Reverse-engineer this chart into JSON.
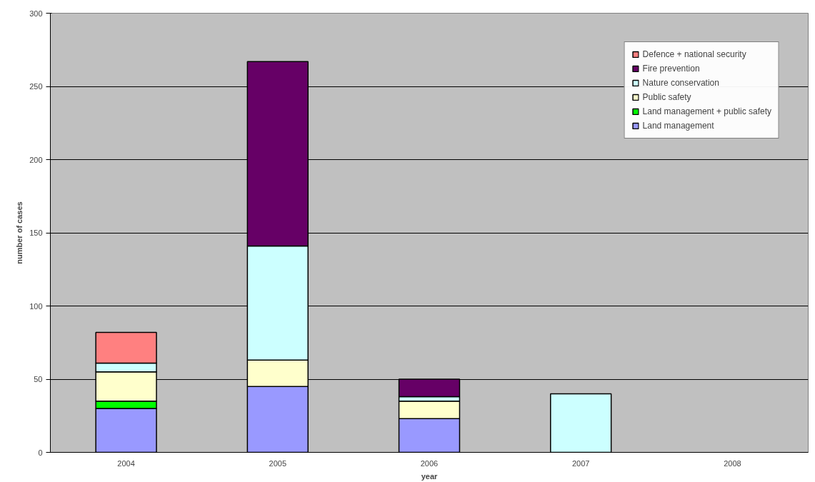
{
  "chart_data": {
    "type": "bar",
    "stacked": true,
    "xlabel": "year",
    "ylabel": "number of cases",
    "categories": [
      "2004",
      "2005",
      "2006",
      "2007",
      "2008"
    ],
    "series": [
      {
        "name": "Land management",
        "color": "#9999ff",
        "values": [
          30,
          45,
          23,
          null,
          null
        ]
      },
      {
        "name": "Land management + public safety",
        "color": "#00ff00",
        "values": [
          5,
          null,
          null,
          null,
          null
        ]
      },
      {
        "name": "Public safety",
        "color": "#ffffcc",
        "values": [
          20,
          18,
          12,
          null,
          null
        ]
      },
      {
        "name": "Nature conservation",
        "color": "#ccffff",
        "values": [
          6,
          78,
          3,
          40,
          null
        ]
      },
      {
        "name": "Fire prevention",
        "color": "#660066",
        "values": [
          null,
          126,
          12,
          null,
          null
        ]
      },
      {
        "name": "Defence + national security",
        "color": "#ff8080",
        "values": [
          21,
          null,
          null,
          null,
          null
        ]
      }
    ],
    "ylim": [
      0,
      300
    ],
    "yticks": [
      0,
      50,
      100,
      150,
      200,
      250,
      300
    ],
    "grid": "y",
    "legend": "top right"
  }
}
